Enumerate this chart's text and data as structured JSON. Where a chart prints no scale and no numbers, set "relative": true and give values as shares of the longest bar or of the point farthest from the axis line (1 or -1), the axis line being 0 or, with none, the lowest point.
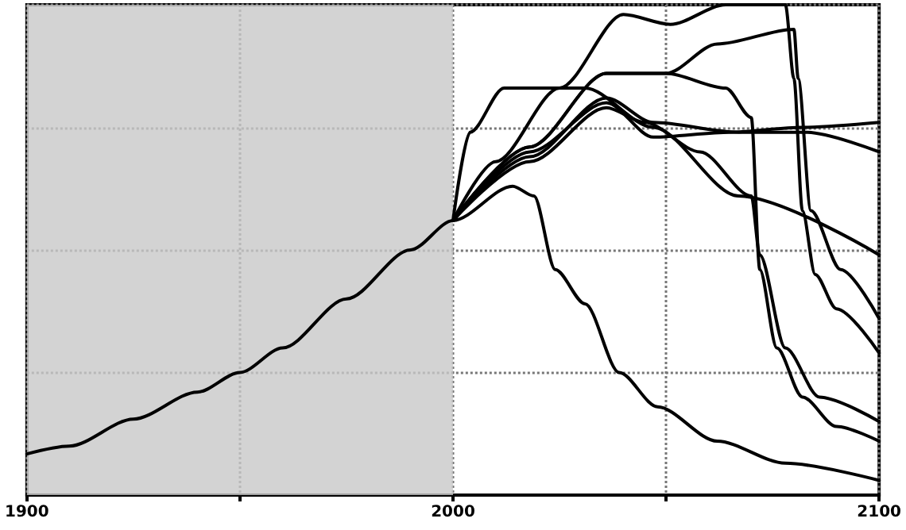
{
  "chart_data": {
    "type": "line",
    "relative": true,
    "xlim": [
      1900,
      2100
    ],
    "xticks": [
      1900,
      {
        "value": 1950,
        "label": null
      },
      2000,
      {
        "value": 2050,
        "label": null
      },
      2100
    ],
    "grid": true,
    "line_style": "solid",
    "marker": "none",
    "bands": [
      {
        "axis": "x",
        "from": 1900,
        "to": 2000,
        "color": "#c8c8c8"
      }
    ],
    "series": [
      {
        "color": "#000000",
        "x": [
          1900,
          1910,
          1925,
          1940,
          1950,
          1960,
          1975,
          1990,
          2000,
          2014,
          2019,
          2024,
          2031,
          2039,
          2048,
          2062,
          2078,
          2100
        ],
        "values": [
          0.084,
          0.1,
          0.155,
          0.21,
          0.25,
          0.3,
          0.4,
          0.5,
          0.56,
          0.63,
          0.61,
          0.46,
          0.39,
          0.25,
          0.18,
          0.11,
          0.065,
          0.03
        ]
      },
      {
        "color": "#000000",
        "x": [
          2000,
          2010,
          2025,
          2040,
          2051,
          2064,
          2078,
          2080,
          2082,
          2085,
          2090,
          2100
        ],
        "values": [
          0.56,
          0.68,
          0.83,
          0.98,
          0.96,
          1.0,
          1.0,
          0.85,
          0.58,
          0.45,
          0.38,
          0.29
        ]
      },
      {
        "color": "#000000",
        "x": [
          2000,
          2018,
          2036,
          2050,
          2062,
          2080,
          2081,
          2084,
          2091,
          2100
        ],
        "values": [
          0.56,
          0.71,
          0.86,
          0.86,
          0.92,
          0.95,
          0.85,
          0.58,
          0.46,
          0.36
        ]
      },
      {
        "color": "#000000",
        "x": [
          2000,
          2018,
          2036,
          2050,
          2064,
          2070,
          2072,
          2076,
          2082,
          2090,
          2100
        ],
        "values": [
          0.56,
          0.71,
          0.86,
          0.86,
          0.83,
          0.77,
          0.46,
          0.3,
          0.2,
          0.14,
          0.11
        ]
      },
      {
        "color": "#000000",
        "x": [
          2000,
          2004,
          2012,
          2031,
          2047,
          2067,
          2100
        ],
        "values": [
          0.56,
          0.74,
          0.83,
          0.83,
          0.75,
          0.61,
          0.49
        ]
      },
      {
        "color": "#000000",
        "x": [
          2000,
          2018,
          2036,
          2047,
          2065,
          2082,
          2100
        ],
        "values": [
          0.56,
          0.7,
          0.8,
          0.73,
          0.74,
          0.75,
          0.76
        ]
      },
      {
        "color": "#000000",
        "x": [
          2000,
          2018,
          2036,
          2047,
          2067,
          2083,
          2100
        ],
        "values": [
          0.56,
          0.69,
          0.81,
          0.76,
          0.74,
          0.74,
          0.7
        ]
      },
      {
        "color": "#000000",
        "x": [
          2000,
          2018,
          2036,
          2045,
          2058,
          2070,
          2072,
          2078,
          2086,
          2100
        ],
        "values": [
          0.56,
          0.68,
          0.79,
          0.76,
          0.7,
          0.61,
          0.49,
          0.3,
          0.2,
          0.15
        ]
      }
    ]
  }
}
